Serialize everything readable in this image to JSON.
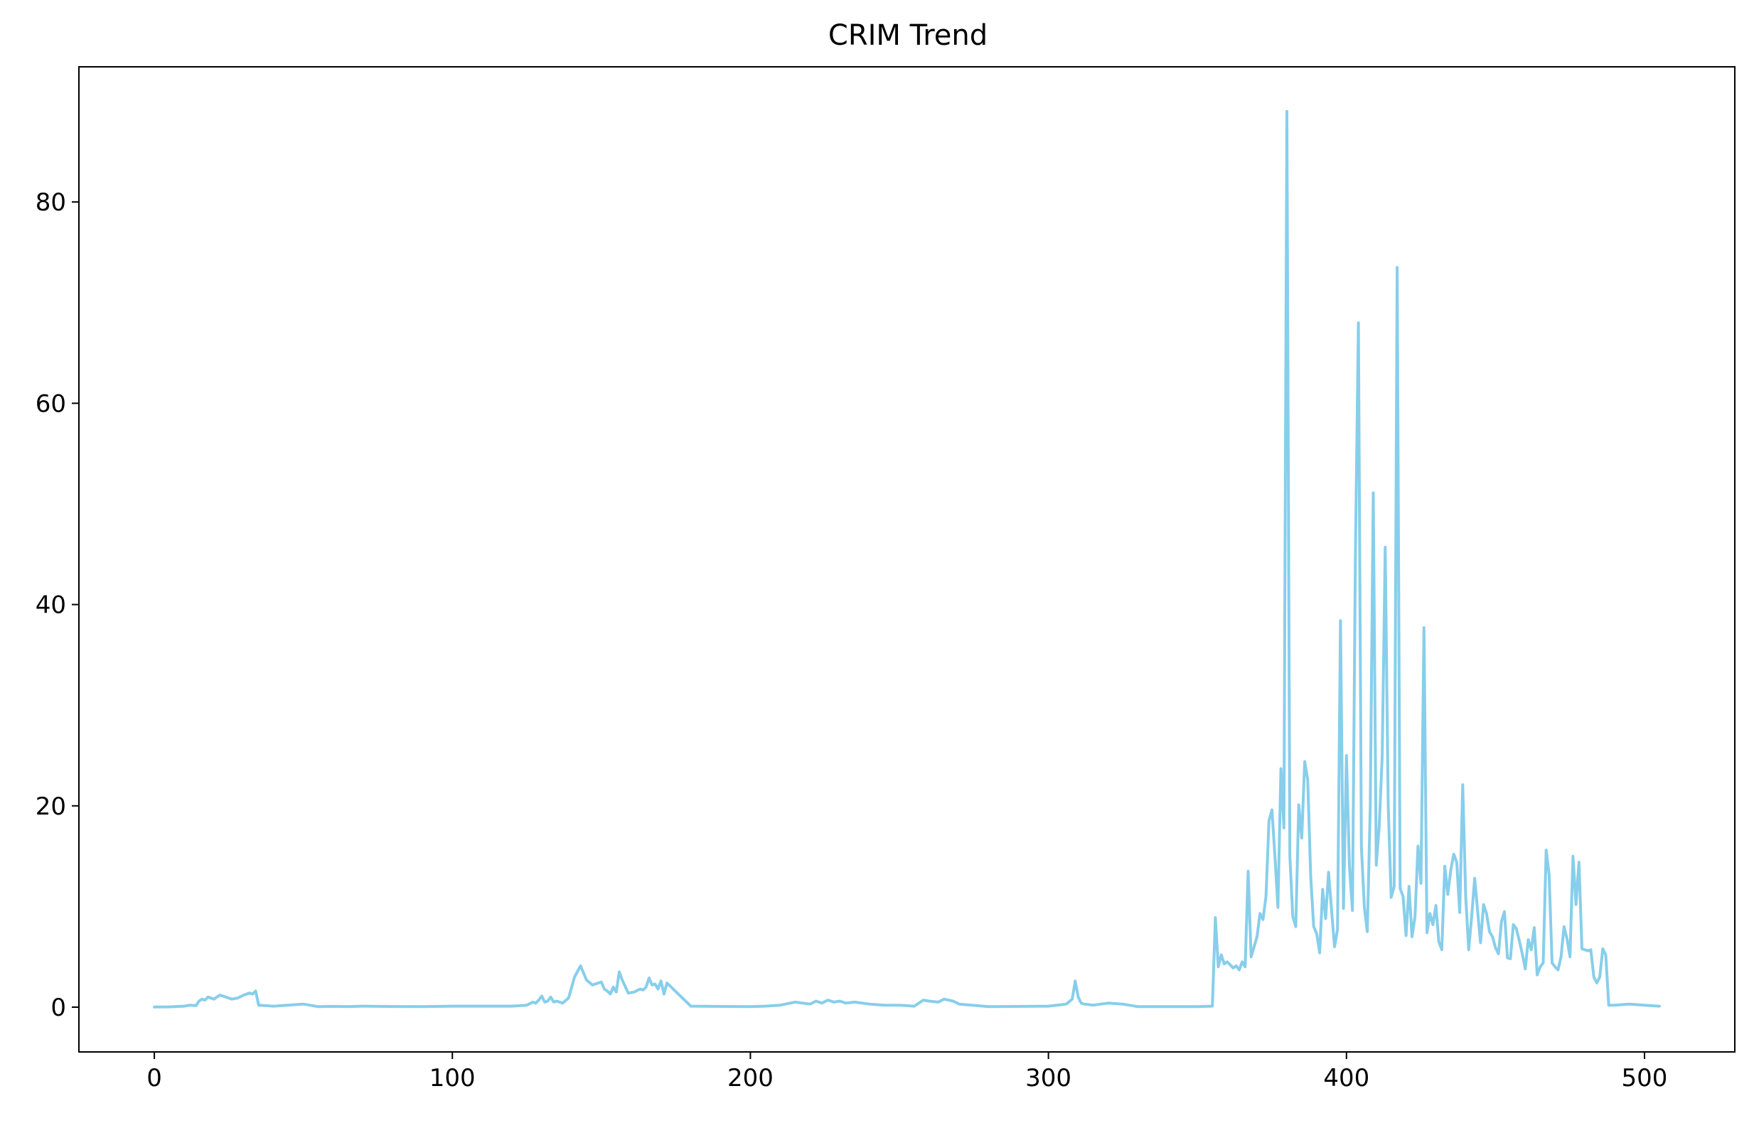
{
  "chart_data": {
    "type": "line",
    "title": "CRIM Trend",
    "xlabel": "",
    "ylabel": "",
    "xlim": [
      -25.3,
      530.3
    ],
    "ylim": [
      -4.45,
      93.43
    ],
    "xticks": [
      0,
      100,
      200,
      300,
      400,
      500
    ],
    "yticks": [
      0,
      20,
      40,
      60,
      80
    ],
    "grid": false,
    "legend": "none",
    "line_color": "#87CEEB",
    "series": [
      {
        "x": [
          0,
          5,
          10,
          12,
          14,
          15,
          16,
          17,
          18,
          19,
          20,
          22,
          24,
          26,
          28,
          30,
          32,
          33,
          34,
          35,
          40,
          50,
          55,
          60,
          65,
          70,
          80,
          90,
          100,
          110,
          120,
          125,
          127,
          128,
          129,
          130,
          131,
          132,
          133,
          134,
          135,
          137,
          139,
          141,
          143,
          145,
          147,
          149,
          150,
          151,
          152,
          153,
          154,
          155,
          156,
          157,
          159,
          161,
          163,
          164,
          165,
          166,
          167,
          168,
          169,
          170,
          171,
          172,
          180,
          200,
          205,
          210,
          215,
          220,
          222,
          224,
          226,
          228,
          230,
          232,
          235,
          240,
          245,
          250,
          255,
          258,
          260,
          263,
          265,
          268,
          270,
          280,
          300,
          306,
          308,
          309,
          310,
          311,
          312,
          315,
          320,
          325,
          330,
          340,
          350,
          355,
          356,
          357,
          358,
          359,
          360,
          362,
          363,
          364,
          365,
          366,
          367,
          368,
          369,
          370,
          371,
          372,
          373,
          374,
          375,
          376,
          377,
          378,
          379,
          380,
          381,
          382,
          383,
          384,
          385,
          386,
          387,
          388,
          389,
          390,
          391,
          392,
          393,
          394,
          395,
          396,
          397,
          398,
          399,
          400,
          401,
          402,
          403,
          404,
          405,
          406,
          407,
          408,
          409,
          410,
          411,
          412,
          413,
          414,
          415,
          416,
          417,
          418,
          419,
          420,
          421,
          422,
          423,
          424,
          425,
          426,
          427,
          428,
          429,
          430,
          431,
          432,
          433,
          434,
          435,
          436,
          437,
          438,
          439,
          440,
          441,
          442,
          443,
          444,
          445,
          446,
          447,
          448,
          449,
          450,
          451,
          452,
          453,
          454,
          455,
          456,
          457,
          458,
          459,
          460,
          461,
          462,
          463,
          464,
          465,
          466,
          467,
          468,
          469,
          470,
          471,
          472,
          473,
          474,
          475,
          476,
          477,
          478,
          479,
          480,
          481,
          482,
          483,
          484,
          485,
          486,
          487,
          488,
          490,
          495,
          500,
          505
        ],
        "values": [
          0.01,
          0.03,
          0.1,
          0.2,
          0.15,
          0.6,
          0.8,
          0.7,
          1.0,
          0.9,
          0.8,
          1.2,
          1.0,
          0.8,
          0.9,
          1.2,
          1.4,
          1.3,
          1.6,
          0.2,
          0.1,
          0.3,
          0.05,
          0.08,
          0.05,
          0.1,
          0.06,
          0.05,
          0.1,
          0.1,
          0.1,
          0.2,
          0.5,
          0.4,
          0.7,
          1.1,
          0.5,
          0.6,
          1.0,
          0.5,
          0.6,
          0.4,
          0.9,
          3.0,
          4.1,
          2.7,
          2.2,
          2.4,
          2.5,
          1.8,
          1.6,
          1.3,
          2.0,
          1.5,
          3.5,
          2.7,
          1.4,
          1.5,
          1.8,
          1.7,
          2.0,
          2.9,
          2.2,
          2.3,
          1.8,
          2.6,
          1.3,
          2.4,
          0.1,
          0.05,
          0.1,
          0.2,
          0.5,
          0.3,
          0.6,
          0.4,
          0.7,
          0.5,
          0.6,
          0.4,
          0.5,
          0.3,
          0.2,
          0.2,
          0.1,
          0.7,
          0.6,
          0.5,
          0.8,
          0.6,
          0.3,
          0.05,
          0.1,
          0.3,
          0.8,
          2.6,
          1.0,
          0.4,
          0.3,
          0.2,
          0.4,
          0.3,
          0.05,
          0.05,
          0.05,
          0.1,
          8.9,
          4.0,
          5.2,
          4.3,
          4.5,
          3.9,
          4.1,
          3.7,
          4.5,
          4.0,
          13.5,
          5.0,
          6.0,
          7.0,
          9.3,
          8.7,
          11.0,
          18.5,
          19.6,
          15.0,
          9.9,
          23.7,
          17.8,
          89.0,
          15.0,
          9.0,
          8.0,
          20.1,
          16.8,
          24.4,
          22.6,
          13.0,
          8.0,
          7.3,
          5.4,
          11.7,
          8.8,
          13.4,
          9.7,
          6.0,
          7.7,
          38.4,
          9.8,
          25.0,
          14.0,
          9.6,
          45.0,
          68.0,
          15.9,
          9.9,
          7.5,
          20.0,
          51.1,
          14.1,
          18.0,
          25.0,
          45.7,
          20.1,
          10.9,
          12.0,
          73.5,
          11.8,
          11.0,
          7.1,
          12.0,
          7.0,
          9.0,
          16.0,
          12.3,
          37.7,
          7.4,
          9.3,
          8.2,
          10.1,
          6.5,
          5.7,
          14.0,
          11.2,
          13.6,
          15.2,
          14.4,
          9.4,
          22.1,
          11.0,
          5.7,
          9.0,
          12.8,
          9.6,
          6.4,
          10.2,
          9.3,
          7.5,
          7.0,
          5.9,
          5.3,
          8.5,
          9.5,
          4.9,
          4.8,
          8.2,
          7.8,
          6.6,
          5.3,
          3.8,
          6.7,
          5.7,
          7.9,
          3.2,
          4.0,
          4.4,
          15.6,
          13.2,
          4.4,
          4.0,
          3.7,
          5.0,
          8.0,
          6.8,
          5.0,
          15.0,
          10.2,
          14.4,
          5.8,
          5.7,
          5.6,
          5.7,
          3.0,
          2.4,
          3.0,
          5.8,
          5.2,
          0.2,
          0.2,
          0.3,
          0.2,
          0.1
        ]
      }
    ]
  }
}
